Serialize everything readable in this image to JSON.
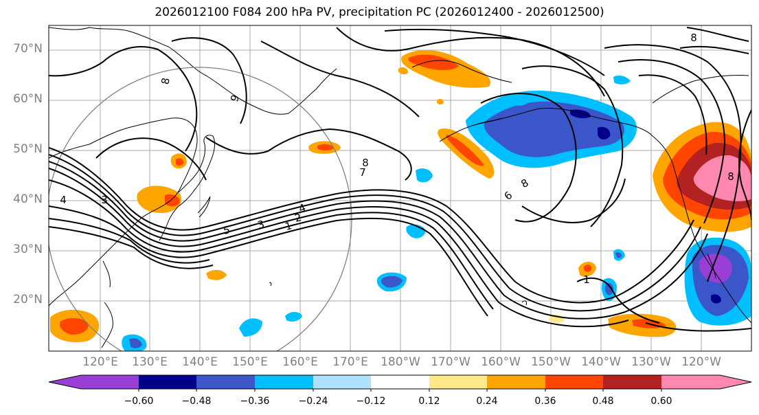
{
  "title": "2026012100 F084 200 hPa PV, precipitation PC (2026012400 - 2026012500)",
  "lat_labels": [
    "70°N",
    "60°N",
    "50°N",
    "40°N",
    "30°N",
    "20°N"
  ],
  "lon_labels": [
    "120°E",
    "130°E",
    "140°E",
    "150°E",
    "160°E",
    "170°E",
    "180°W",
    "170°W",
    "160°W",
    "150°W",
    "140°W",
    "130°W",
    "120°W"
  ],
  "contour_labels": [
    "8",
    "9",
    "7",
    "6",
    "4",
    "5",
    "3",
    "2",
    "1"
  ],
  "colorbar": {
    "ticks": [
      "−0.60",
      "−0.48",
      "−0.36",
      "−0.24",
      "−0.12",
      "0.12",
      "0.24",
      "0.36",
      "0.48",
      "0.60"
    ],
    "colors": [
      "#9a3fd6",
      "#00008b",
      "#3a56c9",
      "#00bfff",
      "#b0e0ff",
      "#ffffff",
      "#ffe98a",
      "#ffa500",
      "#ff4500",
      "#b22222",
      "#ff88b0"
    ]
  },
  "colors": {
    "pos_1": "#ffe98a",
    "pos_2": "#ffa500",
    "pos_3": "#ff4500",
    "pos_4": "#b22222",
    "pos_5": "#ff88b0",
    "neg_1": "#b0e0ff",
    "neg_2": "#00bfff",
    "neg_3": "#3a56c9",
    "neg_4": "#00008b",
    "neg_5": "#9a3fd6"
  }
}
